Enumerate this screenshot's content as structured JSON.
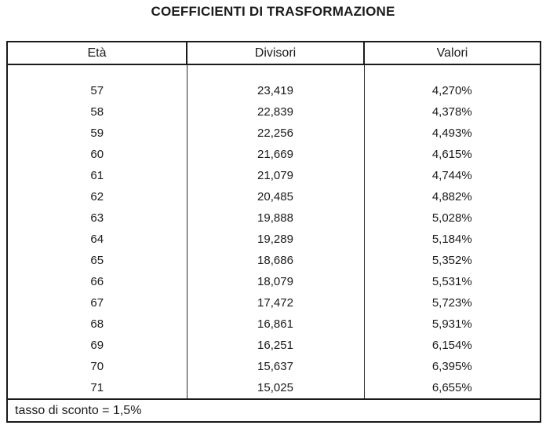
{
  "page": {
    "title": "COEFFICIENTI DI TRASFORMAZIONE"
  },
  "table": {
    "columns": [
      "Età",
      "Divisori",
      "Valori"
    ],
    "rows": [
      [
        "57",
        "23,419",
        "4,270%"
      ],
      [
        "58",
        "22,839",
        "4,378%"
      ],
      [
        "59",
        "22,256",
        "4,493%"
      ],
      [
        "60",
        "21,669",
        "4,615%"
      ],
      [
        "61",
        "21,079",
        "4,744%"
      ],
      [
        "62",
        "20,485",
        "4,882%"
      ],
      [
        "63",
        "19,888",
        "5,028%"
      ],
      [
        "64",
        "19,289",
        "5,184%"
      ],
      [
        "65",
        "18,686",
        "5,352%"
      ],
      [
        "66",
        "18,079",
        "5,531%"
      ],
      [
        "67",
        "17,472",
        "5,723%"
      ],
      [
        "68",
        "16,861",
        "5,931%"
      ],
      [
        "69",
        "16,251",
        "6,154%"
      ],
      [
        "70",
        "15,637",
        "6,395%"
      ],
      [
        "71",
        "15,025",
        "6,655%"
      ]
    ],
    "footer": "tasso di sconto = 1,5%"
  }
}
